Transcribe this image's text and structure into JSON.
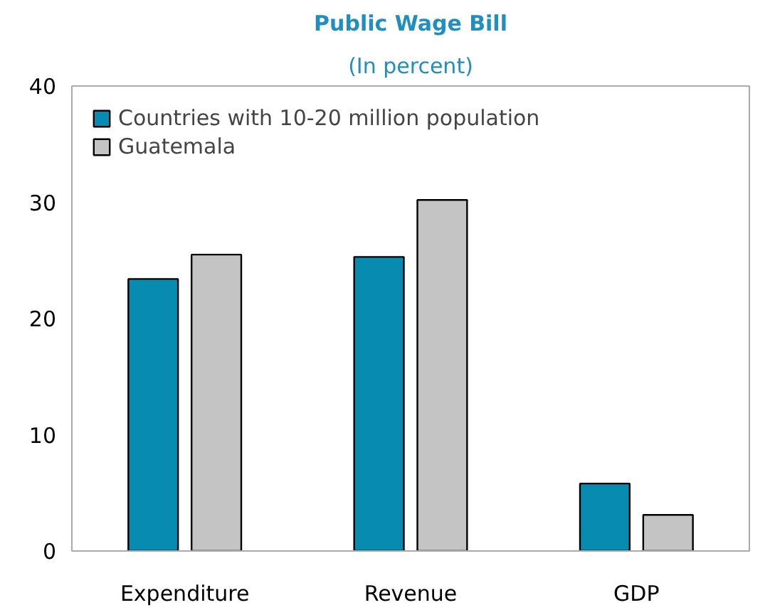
{
  "chart_data": {
    "type": "bar",
    "title": "Public Wage Bill",
    "subtitle": "(In percent)",
    "categories": [
      "Expenditure",
      "Revenue",
      "GDP"
    ],
    "series": [
      {
        "name": "Countries with 10-20 million population",
        "color": "#078bb0",
        "values": [
          23.4,
          25.3,
          5.8
        ]
      },
      {
        "name": "Guatemala",
        "color": "#c4c4c4",
        "values": [
          25.5,
          30.2,
          3.1
        ]
      }
    ],
    "ylim": [
      0,
      40
    ],
    "yticks": [
      0,
      10,
      20,
      30,
      40
    ],
    "grid": false,
    "legend": "top left"
  }
}
